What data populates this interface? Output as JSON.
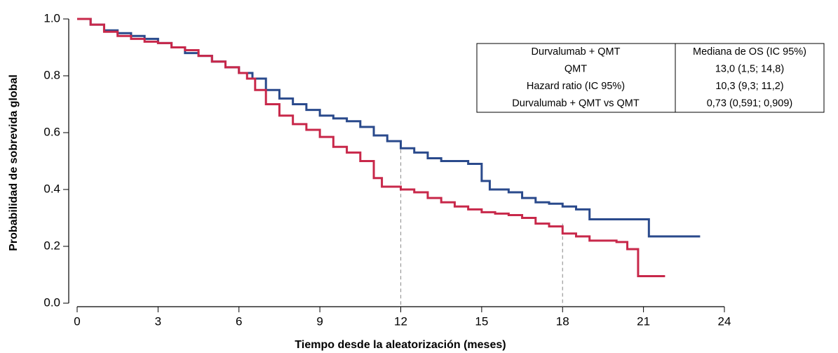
{
  "chart_data": {
    "type": "line",
    "step": true,
    "xlabel": "Tiempo desde la aleatorización (meses)",
    "ylabel": "Probabilidad de sobrevida global",
    "xlim": [
      0,
      24
    ],
    "xticks": [
      0,
      3,
      6,
      9,
      12,
      15,
      18,
      21,
      24
    ],
    "ylim": [
      0,
      1
    ],
    "yticks": [
      {
        "value": 0,
        "label": "0.0"
      },
      0.2,
      0.4,
      0.6,
      0.8,
      {
        "value": 1,
        "label": "1.0"
      }
    ],
    "reference_lines": [
      {
        "x": 12,
        "y": 0.54
      },
      {
        "x": 18,
        "y": 0.28
      }
    ],
    "series": [
      {
        "color": "#2a4a8c",
        "x": [
          0,
          0.5,
          1,
          1.5,
          2,
          2.5,
          3,
          3.5,
          4,
          4.5,
          5,
          5.5,
          6,
          6.5,
          7,
          7.5,
          8,
          8.5,
          9,
          9.5,
          10,
          10.5,
          11,
          11.5,
          12,
          12.5,
          13,
          13.5,
          14,
          14.5,
          15,
          15.3,
          16,
          16.5,
          17,
          17.5,
          18,
          18.5,
          19,
          21.2,
          23.1
        ],
        "values": [
          1.0,
          0.98,
          0.96,
          0.95,
          0.94,
          0.93,
          0.915,
          0.9,
          0.88,
          0.87,
          0.85,
          0.83,
          0.81,
          0.79,
          0.75,
          0.72,
          0.7,
          0.68,
          0.66,
          0.65,
          0.64,
          0.62,
          0.59,
          0.57,
          0.545,
          0.53,
          0.51,
          0.5,
          0.5,
          0.49,
          0.43,
          0.4,
          0.39,
          0.37,
          0.355,
          0.35,
          0.34,
          0.33,
          0.295,
          0.235,
          0.235
        ]
      },
      {
        "color": "#c8284a",
        "x": [
          0,
          0.5,
          1,
          1.5,
          2,
          2.5,
          3,
          3.5,
          4,
          4.5,
          5,
          5.5,
          6,
          6.3,
          6.6,
          7,
          7.5,
          8,
          8.5,
          9,
          9.5,
          10,
          10.5,
          11,
          11.3,
          12,
          12.5,
          13,
          13.5,
          14,
          14.5,
          15,
          15.5,
          16,
          16.5,
          17,
          17.5,
          18,
          18.5,
          19,
          20,
          20.4,
          20.8,
          21.8
        ],
        "values": [
          1.0,
          0.98,
          0.955,
          0.94,
          0.93,
          0.92,
          0.915,
          0.9,
          0.89,
          0.87,
          0.85,
          0.83,
          0.81,
          0.79,
          0.75,
          0.7,
          0.66,
          0.63,
          0.61,
          0.585,
          0.55,
          0.53,
          0.5,
          0.44,
          0.41,
          0.4,
          0.39,
          0.37,
          0.355,
          0.34,
          0.33,
          0.32,
          0.315,
          0.31,
          0.3,
          0.28,
          0.27,
          0.245,
          0.235,
          0.22,
          0.215,
          0.19,
          0.095,
          0.095
        ]
      }
    ],
    "table": {
      "rows": [
        [
          "Durvalumab + QMT",
          "Mediana de OS (IC 95%)"
        ],
        [
          "QMT",
          "13,0 (1,5; 14,8)"
        ],
        [
          "Hazard ratio (IC 95%)",
          "10,3 (9,3; 11,2)"
        ],
        [
          "Durvalumab + QMT vs QMT",
          "0,73 (0,591; 0,909)"
        ]
      ]
    }
  }
}
